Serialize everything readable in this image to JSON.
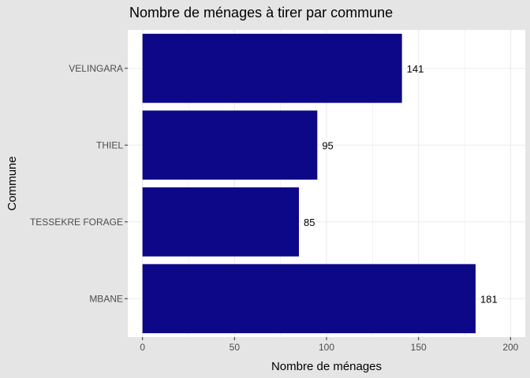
{
  "chart_data": {
    "type": "bar",
    "orientation": "horizontal",
    "title": "Nombre de ménages à tirer par commune",
    "xlabel": "Nombre de ménages",
    "ylabel": "Commune",
    "categories": [
      "MBANE",
      "TESSEKRE FORAGE",
      "THIEL",
      "VELINGARA"
    ],
    "values": [
      181,
      85,
      95,
      141
    ],
    "xlim": [
      -8,
      208
    ],
    "xticks": [
      0,
      50,
      100,
      150,
      200
    ],
    "grid": true,
    "bar_color": "#0d0887",
    "panel_background": "#ffffff",
    "plot_background": "#e5e5e5"
  }
}
